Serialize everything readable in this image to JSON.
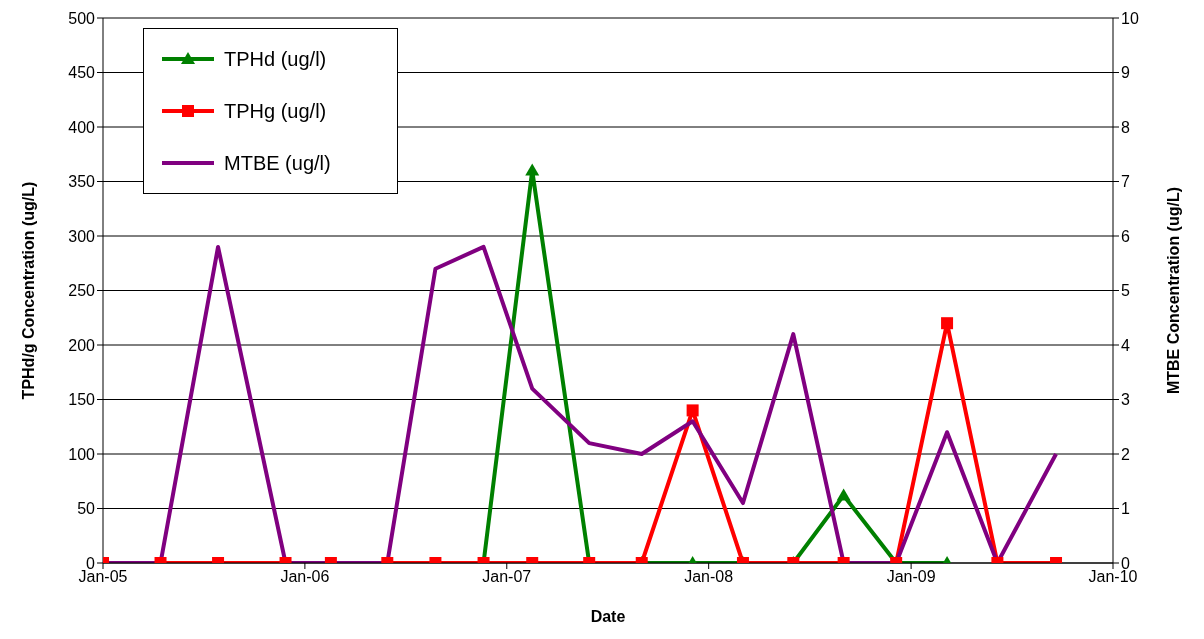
{
  "chart_data": {
    "type": "line",
    "xlabel": "Date",
    "ylabel": "TPHd/g Concentration (ug/L)",
    "y2label": "MTBE Concentration (ug/L)",
    "x": [
      "2005-01-01",
      "2005-04-15",
      "2005-07-28",
      "2005-11-27",
      "2006-02-17",
      "2006-05-30",
      "2006-08-25",
      "2006-11-20",
      "2007-02-16",
      "2007-05-30",
      "2007-09-02",
      "2007-12-03",
      "2008-03-03",
      "2008-06-02",
      "2008-09-01",
      "2008-12-05",
      "2009-03-07",
      "2009-06-06",
      "2009-09-20"
    ],
    "series": [
      {
        "name": "TPHd (ug/l)",
        "color": "#008000",
        "marker": "triangle",
        "values": [
          null,
          null,
          null,
          null,
          null,
          null,
          null,
          0,
          360,
          0,
          0,
          0,
          0,
          0,
          62,
          0,
          0,
          null,
          null
        ]
      },
      {
        "name": "TPHg (ug/l)",
        "color": "#ff0000",
        "marker": "square",
        "values": [
          0,
          0,
          0,
          0,
          0,
          0,
          0,
          0,
          0,
          0,
          0,
          140,
          0,
          0,
          0,
          0,
          220,
          0,
          0
        ]
      },
      {
        "name": "MTBE (ug/l)",
        "color": "#800080",
        "marker": "none",
        "axis": "y2",
        "values": [
          0,
          0,
          5.8,
          0,
          0,
          0,
          5.4,
          5.8,
          3.2,
          2.2,
          2.0,
          2.6,
          1.1,
          4.2,
          0,
          0,
          2.4,
          0,
          2.0
        ]
      }
    ],
    "xlim": [
      "2005-01",
      "2010-01"
    ],
    "xticks": [
      {
        "value": "2005-01",
        "label": "Jan-05"
      },
      {
        "value": "2006-01",
        "label": "Jan-06"
      },
      {
        "value": "2007-01",
        "label": "Jan-07"
      },
      {
        "value": "2008-01",
        "label": "Jan-08"
      },
      {
        "value": "2009-01",
        "label": "Jan-09"
      },
      {
        "value": "2010-01",
        "label": "Jan-10"
      }
    ],
    "ylim": [
      0,
      500
    ],
    "yticks": [
      0,
      50,
      100,
      150,
      200,
      250,
      300,
      350,
      400,
      450,
      500
    ],
    "y2lim": [
      0,
      10
    ],
    "y2ticks": [
      0,
      1,
      2,
      3,
      4,
      5,
      6,
      7,
      8,
      9,
      10
    ],
    "grid": "y",
    "legend": "top left"
  }
}
